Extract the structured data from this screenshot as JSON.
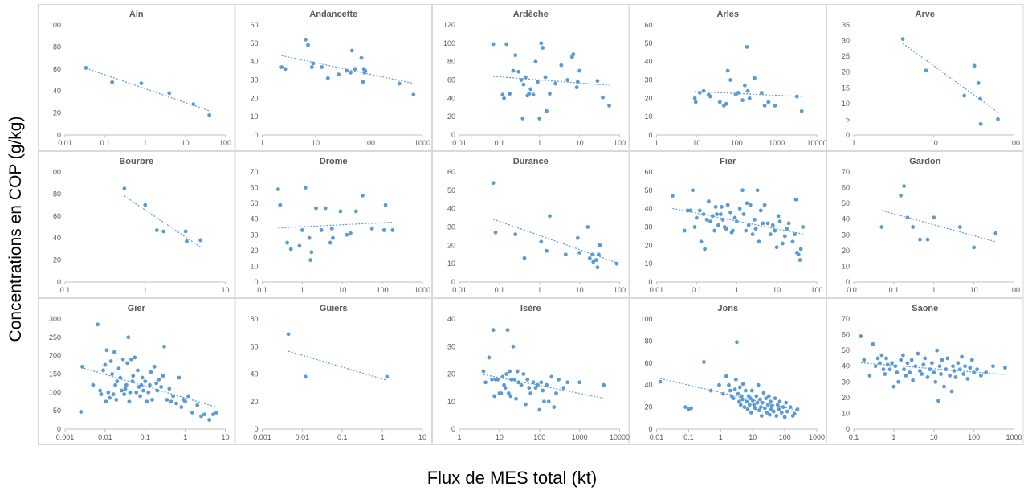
{
  "figure": {
    "ylabel": "Concentrations en COP (g/kg)",
    "xlabel": "Flux de MES total (kt)",
    "colors": {
      "point": "#5B9BD5",
      "trend": "#5B9BD5",
      "panel_border": "#D9D9D9",
      "axis": "#BFBFBF",
      "tick_text": "#595959",
      "title": "#595959"
    }
  },
  "chart_data": [
    {
      "type": "scatter",
      "title": "Ain",
      "x_scale": "log",
      "xlim": [
        0.01,
        100
      ],
      "ylim": [
        0,
        100
      ],
      "xticks": [
        "0.01",
        "0.1",
        "1",
        "10",
        "100"
      ],
      "yticks": [
        "0",
        "20",
        "40",
        "60",
        "80",
        "100"
      ],
      "x": [
        0.033,
        0.15,
        0.8,
        4,
        16,
        40
      ],
      "y": [
        61,
        48,
        47,
        38,
        28,
        18
      ],
      "trendline": true,
      "grid": false
    },
    {
      "type": "scatter",
      "title": "Andancette",
      "x_scale": "log",
      "xlim": [
        1,
        1000
      ],
      "ylim": [
        0,
        60
      ],
      "xticks": [
        "1",
        "10",
        "100",
        "1000"
      ],
      "yticks": [
        "0",
        "10",
        "20",
        "30",
        "40",
        "50",
        "60"
      ],
      "x": [
        2.3,
        2.7,
        6.5,
        7.2,
        8.5,
        9,
        13,
        17,
        27,
        38,
        45,
        48,
        55,
        72,
        77,
        80,
        82,
        85,
        370,
        680
      ],
      "y": [
        37,
        36,
        52,
        49,
        37,
        39,
        37,
        31,
        33,
        35,
        34,
        46,
        36,
        42,
        29,
        36,
        34,
        35,
        28,
        22
      ],
      "trendline": true,
      "grid": false
    },
    {
      "type": "scatter",
      "title": "Ardèche",
      "x_scale": "log",
      "xlim": [
        0.01,
        100
      ],
      "ylim": [
        0,
        120
      ],
      "xticks": [
        "0.01",
        "0.1",
        "1",
        "10",
        "100"
      ],
      "yticks": [
        "0",
        "20",
        "40",
        "60",
        "80",
        "100",
        "120"
      ],
      "x": [
        0.07,
        0.12,
        0.13,
        0.15,
        0.18,
        0.22,
        0.25,
        0.3,
        0.35,
        0.38,
        0.4,
        0.45,
        0.5,
        0.55,
        0.6,
        0.7,
        0.8,
        0.9,
        1.0,
        1.1,
        1.2,
        1.4,
        1.5,
        1.8,
        2.5,
        3.5,
        5,
        6.5,
        7,
        8.5,
        9,
        10,
        28,
        38,
        55
      ],
      "y": [
        99,
        44,
        40,
        99,
        45,
        70,
        87,
        69,
        60,
        18,
        55,
        63,
        43,
        45,
        50,
        44,
        80,
        58,
        18,
        100,
        95,
        63,
        26,
        45,
        56,
        76,
        60,
        85,
        88,
        52,
        58,
        70,
        59,
        41,
        32
      ],
      "trendline": true,
      "grid": false
    },
    {
      "type": "scatter",
      "title": "Arles",
      "x_scale": "log",
      "xlim": [
        1,
        10000
      ],
      "ylim": [
        0,
        60
      ],
      "xticks": [
        "1",
        "10",
        "100",
        "1000",
        "10000"
      ],
      "yticks": [
        "0",
        "10",
        "20",
        "30",
        "40",
        "50",
        "60"
      ],
      "x": [
        9,
        9.5,
        12,
        15,
        20,
        22,
        38,
        48,
        55,
        60,
        70,
        95,
        110,
        140,
        160,
        180,
        190,
        210,
        280,
        420,
        500,
        620,
        900,
        3200,
        4200
      ],
      "y": [
        20,
        18,
        23,
        24,
        22,
        21,
        18,
        16,
        17,
        35,
        30,
        22,
        23,
        19,
        27,
        48,
        24,
        20,
        31,
        23,
        16,
        18,
        16,
        21,
        13
      ],
      "trendline": true,
      "grid": false
    },
    {
      "type": "scatter",
      "title": "Arve",
      "x_scale": "log",
      "xlim": [
        1,
        100
      ],
      "ylim": [
        0,
        35
      ],
      "xticks": [
        "1",
        "10",
        "100"
      ],
      "yticks": [
        "0",
        "5",
        "10",
        "15",
        "20",
        "25",
        "30",
        "35"
      ],
      "x": [
        4.1,
        8,
        24,
        32,
        36,
        38,
        38.5,
        63
      ],
      "y": [
        30.5,
        20.5,
        12.5,
        22,
        16.5,
        11.5,
        3.5,
        5
      ],
      "trendline": true,
      "grid": false
    },
    {
      "type": "scatter",
      "title": "Bourbre",
      "x_scale": "log",
      "xlim": [
        0.1,
        10
      ],
      "ylim": [
        0,
        100
      ],
      "xticks": [
        "0.1",
        "1",
        "10"
      ],
      "yticks": [
        "0",
        "20",
        "40",
        "60",
        "80",
        "100"
      ],
      "x": [
        0.55,
        1.0,
        1.4,
        1.7,
        3.2,
        3.3,
        4.9
      ],
      "y": [
        85,
        70,
        47,
        46,
        46,
        37,
        38
      ],
      "trendline": true,
      "grid": false
    },
    {
      "type": "scatter",
      "title": "Drome",
      "x_scale": "log",
      "xlim": [
        0.1,
        1000
      ],
      "ylim": [
        0,
        70
      ],
      "xticks": [
        "0.1",
        "1",
        "10",
        "100",
        "1000"
      ],
      "yticks": [
        "0",
        "10",
        "20",
        "30",
        "40",
        "50",
        "60",
        "70"
      ],
      "x": [
        0.25,
        0.28,
        0.42,
        0.52,
        0.85,
        1.0,
        1.2,
        1.5,
        1.6,
        1.7,
        2.2,
        3.0,
        3.8,
        5.0,
        5.5,
        5.8,
        9.0,
        13,
        16,
        22,
        32,
        55,
        110,
        120,
        180
      ],
      "y": [
        59,
        49,
        25,
        21,
        23,
        33,
        60,
        28,
        14,
        19,
        47,
        33,
        47,
        25,
        34,
        28,
        45,
        30,
        31,
        45,
        55,
        34,
        33,
        49,
        33
      ],
      "trendline": true,
      "grid": false
    },
    {
      "type": "scatter",
      "title": "Durance",
      "x_scale": "log",
      "xlim": [
        0.01,
        100
      ],
      "ylim": [
        0,
        60
      ],
      "xticks": [
        "0.01",
        "0.1",
        "1",
        "10",
        "100"
      ],
      "yticks": [
        "0",
        "10",
        "20",
        "30",
        "40",
        "50",
        "60"
      ],
      "x": [
        0.07,
        0.08,
        0.25,
        0.42,
        1.1,
        1.5,
        1.8,
        4.5,
        9,
        10,
        16,
        18,
        21,
        22,
        26,
        28,
        30,
        32,
        85
      ],
      "y": [
        54,
        27,
        26,
        13,
        22,
        17,
        36,
        15,
        24,
        16,
        30,
        13,
        15,
        11,
        12,
        8,
        15,
        20,
        10
      ],
      "trendline": true,
      "grid": false
    },
    {
      "type": "scatter",
      "title": "Fier",
      "x_scale": "log",
      "xlim": [
        0.01,
        100
      ],
      "ylim": [
        0,
        60
      ],
      "xticks": [
        "0.01",
        "0.1",
        "1",
        "10",
        "100"
      ],
      "yticks": [
        "0",
        "10",
        "20",
        "30",
        "40",
        "50",
        "60"
      ],
      "x": [
        0.025,
        0.05,
        0.06,
        0.07,
        0.08,
        0.09,
        0.1,
        0.12,
        0.13,
        0.15,
        0.16,
        0.18,
        0.2,
        0.22,
        0.25,
        0.28,
        0.3,
        0.32,
        0.35,
        0.4,
        0.42,
        0.45,
        0.5,
        0.55,
        0.6,
        0.7,
        0.75,
        0.8,
        0.9,
        1.0,
        1.2,
        1.4,
        1.5,
        1.7,
        1.8,
        2.0,
        2.2,
        2.5,
        2.8,
        3.0,
        3.3,
        3.6,
        4.0,
        4.5,
        5,
        6,
        7,
        8,
        9,
        10,
        11,
        12,
        14,
        16,
        18,
        20,
        25,
        28,
        30,
        32,
        35,
        38,
        40,
        45
      ],
      "y": [
        47,
        28,
        39,
        39,
        50,
        30,
        35,
        39,
        22,
        37,
        18,
        34,
        44,
        33,
        36,
        28,
        41,
        37,
        31,
        37,
        41,
        34,
        30,
        29,
        42,
        38,
        27,
        28,
        35,
        33,
        40,
        50,
        37,
        28,
        43,
        31,
        42,
        26,
        34,
        29,
        50,
        22,
        39,
        32,
        42,
        32,
        26,
        31,
        28,
        19,
        36,
        33,
        21,
        25,
        29,
        32,
        22,
        26,
        45,
        16,
        15,
        12,
        18,
        30
      ],
      "trendline": true,
      "grid": false
    },
    {
      "type": "scatter",
      "title": "Gardon",
      "x_scale": "log",
      "xlim": [
        0.01,
        100
      ],
      "ylim": [
        0,
        70
      ],
      "xticks": [
        "0.01",
        "0.1",
        "1",
        "10",
        "100"
      ],
      "yticks": [
        "0",
        "10",
        "20",
        "30",
        "40",
        "50",
        "60",
        "70"
      ],
      "x": [
        0.05,
        0.15,
        0.18,
        0.22,
        0.3,
        0.45,
        0.7,
        1.0,
        4.5,
        10,
        35
      ],
      "y": [
        35,
        55,
        61,
        41,
        35,
        27,
        27,
        41,
        35,
        22,
        31
      ],
      "trendline": true,
      "grid": false
    },
    {
      "type": "scatter",
      "title": "Gier",
      "x_scale": "log",
      "xlim": [
        0.001,
        10
      ],
      "ylim": [
        0,
        300
      ],
      "xticks": [
        "0.001",
        "0.01",
        "0.1",
        "1",
        "10"
      ],
      "yticks": [
        "0",
        "50",
        "100",
        "150",
        "200",
        "250",
        "300"
      ],
      "x": [
        0.0025,
        0.0027,
        0.005,
        0.0065,
        0.0075,
        0.008,
        0.009,
        0.01,
        0.0105,
        0.011,
        0.012,
        0.013,
        0.014,
        0.015,
        0.016,
        0.017,
        0.018,
        0.019,
        0.02,
        0.022,
        0.024,
        0.026,
        0.028,
        0.03,
        0.032,
        0.034,
        0.036,
        0.038,
        0.04,
        0.042,
        0.045,
        0.048,
        0.05,
        0.055,
        0.06,
        0.065,
        0.07,
        0.075,
        0.08,
        0.085,
        0.09,
        0.1,
        0.11,
        0.12,
        0.13,
        0.14,
        0.15,
        0.17,
        0.19,
        0.2,
        0.22,
        0.25,
        0.28,
        0.3,
        0.35,
        0.4,
        0.45,
        0.5,
        0.6,
        0.7,
        0.8,
        0.9,
        1.0,
        1.2,
        1.5,
        2.0,
        2.5,
        3.0,
        4.0,
        5.0,
        6.0
      ],
      "y": [
        47,
        170,
        120,
        285,
        105,
        95,
        160,
        175,
        75,
        215,
        100,
        85,
        185,
        150,
        95,
        210,
        120,
        80,
        130,
        165,
        140,
        105,
        190,
        95,
        110,
        120,
        180,
        250,
        75,
        100,
        190,
        130,
        145,
        195,
        100,
        160,
        115,
        90,
        120,
        140,
        105,
        130,
        75,
        100,
        120,
        155,
        80,
        170,
        125,
        105,
        135,
        115,
        145,
        225,
        80,
        110,
        75,
        90,
        70,
        140,
        60,
        80,
        75,
        90,
        45,
        65,
        35,
        40,
        25,
        40,
        45
      ],
      "trendline": true,
      "grid": false
    },
    {
      "type": "scatter",
      "title": "Guiers",
      "x_scale": "log",
      "xlim": [
        0.001,
        10
      ],
      "ylim": [
        0,
        80
      ],
      "xticks": [
        "0.001",
        "0.01",
        "0.1",
        "1",
        "10"
      ],
      "yticks": [
        "0",
        "20",
        "40",
        "60",
        "80"
      ],
      "x": [
        0.0045,
        0.012,
        1.3
      ],
      "y": [
        69,
        38,
        38
      ],
      "trendline": true,
      "grid": false
    },
    {
      "type": "scatter",
      "title": "Isère",
      "x_scale": "log",
      "xlim": [
        1,
        10000
      ],
      "ylim": [
        0,
        40
      ],
      "xticks": [
        "1",
        "10",
        "100",
        "1000",
        "10000"
      ],
      "yticks": [
        "0",
        "10",
        "20",
        "30",
        "40"
      ],
      "x": [
        4,
        4.5,
        5.5,
        6.5,
        7,
        7.5,
        8,
        9,
        10,
        11,
        12,
        13,
        14,
        15,
        16,
        17,
        18,
        19,
        20,
        22,
        24,
        26,
        28,
        30,
        35,
        40,
        45,
        50,
        55,
        60,
        70,
        80,
        90,
        100,
        110,
        120,
        130,
        150,
        170,
        200,
        230,
        260,
        300,
        400,
        500,
        1000,
        4000
      ],
      "y": [
        21,
        17,
        26,
        18,
        36,
        12,
        18,
        18,
        13,
        13,
        19,
        16,
        15,
        20,
        36,
        13,
        21,
        12,
        18,
        30,
        18,
        11,
        21,
        17,
        16,
        20,
        9,
        18,
        15,
        13,
        17,
        15,
        16,
        7,
        17,
        14,
        10,
        16,
        10,
        19,
        8,
        13,
        18,
        15,
        17,
        17,
        16
      ],
      "trendline": true,
      "grid": false
    },
    {
      "type": "scatter",
      "title": "Jons",
      "x_scale": "log",
      "xlim": [
        0.01,
        1000
      ],
      "ylim": [
        0,
        100
      ],
      "xticks": [
        "0.01",
        "0.1",
        "1",
        "10",
        "100",
        "1000"
      ],
      "yticks": [
        "0",
        "20",
        "40",
        "60",
        "80",
        "100"
      ],
      "x": [
        0.013,
        0.08,
        0.1,
        0.12,
        0.3,
        0.5,
        0.9,
        1.2,
        1.5,
        1.8,
        2.0,
        2.2,
        2.5,
        2.8,
        3.0,
        3.2,
        3.5,
        3.8,
        4.0,
        4.2,
        4.5,
        4.8,
        5,
        5.5,
        6,
        6.5,
        7,
        7.5,
        8,
        8.5,
        9,
        9.5,
        10,
        11,
        12,
        13,
        14,
        15,
        16,
        17,
        18,
        19,
        20,
        22,
        24,
        26,
        28,
        30,
        32,
        34,
        36,
        38,
        40,
        45,
        50,
        55,
        60,
        65,
        70,
        80,
        90,
        100,
        110,
        120,
        150,
        180,
        200,
        250
      ],
      "y": [
        43,
        20,
        18,
        19,
        61,
        35,
        40,
        32,
        48,
        40,
        35,
        30,
        28,
        36,
        45,
        79,
        32,
        25,
        38,
        22,
        30,
        27,
        41,
        20,
        35,
        25,
        18,
        30,
        22,
        28,
        15,
        35,
        26,
        22,
        19,
        30,
        24,
        40,
        17,
        27,
        20,
        12,
        24,
        33,
        19,
        28,
        15,
        22,
        30,
        13,
        25,
        18,
        21,
        16,
        28,
        12,
        22,
        18,
        25,
        15,
        20,
        11,
        24,
        16,
        20,
        12,
        14,
        18
      ],
      "trendline": true,
      "grid": false
    },
    {
      "type": "scatter",
      "title": "Saone",
      "x_scale": "log",
      "xlim": [
        0.1,
        1000
      ],
      "ylim": [
        0,
        70
      ],
      "xticks": [
        "0.1",
        "1",
        "10",
        "100",
        "1000"
      ],
      "yticks": [
        "0",
        "10",
        "20",
        "30",
        "40",
        "50",
        "60",
        "70"
      ],
      "x": [
        0.15,
        0.18,
        0.25,
        0.3,
        0.35,
        0.4,
        0.45,
        0.5,
        0.55,
        0.6,
        0.65,
        0.7,
        0.8,
        0.9,
        1.0,
        1.1,
        1.2,
        1.3,
        1.5,
        1.7,
        1.8,
        2.0,
        2.2,
        2.5,
        2.8,
        3.0,
        3.5,
        4.0,
        4.5,
        5.0,
        5.5,
        6,
        7,
        8,
        9,
        10,
        11,
        12,
        13,
        14,
        15,
        16,
        18,
        20,
        22,
        25,
        28,
        30,
        32,
        35,
        40,
        45,
        50,
        55,
        60,
        70,
        80,
        90,
        100,
        120,
        150,
        200,
        300,
        600
      ],
      "y": [
        59,
        44,
        34,
        54,
        40,
        45,
        42,
        47,
        38,
        35,
        45,
        41,
        38,
        42,
        27,
        40,
        36,
        30,
        44,
        47,
        38,
        34,
        42,
        36,
        44,
        31,
        40,
        48,
        37,
        35,
        41,
        45,
        33,
        38,
        42,
        36,
        30,
        50,
        18,
        40,
        35,
        44,
        27,
        38,
        45,
        34,
        24,
        40,
        37,
        33,
        42,
        38,
        46,
        35,
        40,
        32,
        39,
        44,
        36,
        38,
        34,
        36,
        40,
        39
      ],
      "trendline": true,
      "grid": false
    }
  ]
}
